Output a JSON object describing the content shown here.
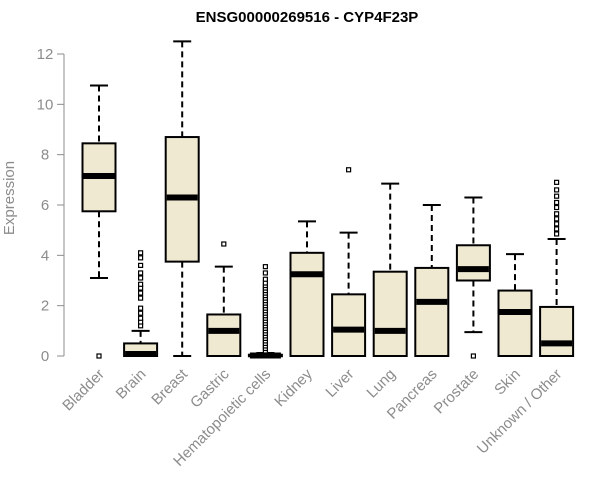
{
  "chart_data": {
    "type": "box",
    "title": "ENSG00000269516 - CYP4F23P",
    "xlabel": "",
    "ylabel": "Expression",
    "ylim": [
      0,
      12.5
    ],
    "yticks": [
      0,
      2,
      4,
      6,
      8,
      10,
      12
    ],
    "grid": false,
    "box_fill": "#efe9d2",
    "box_stroke": "#000000",
    "axis_color": "#8c8c8c",
    "categories": [
      "Bladder",
      "Brain",
      "Breast",
      "Gastric",
      "Hematopoietic cells",
      "Kidney",
      "Liver",
      "Lung",
      "Pancreas",
      "Prostate",
      "Skin",
      "Unknown / Other"
    ],
    "boxes": [
      {
        "category": "Bladder",
        "whisker_low": 3.1,
        "q1": 5.75,
        "median": 7.15,
        "q3": 8.45,
        "whisker_high": 10.75,
        "outliers": [
          0.0
        ]
      },
      {
        "category": "Brain",
        "whisker_low": 0.0,
        "q1": 0.0,
        "median": 0.08,
        "q3": 0.5,
        "whisker_high": 1.0,
        "outliers": [
          1.2,
          1.35,
          1.5,
          1.7,
          1.9,
          2.3,
          2.5,
          2.7,
          2.85,
          3.1,
          3.3,
          3.6,
          3.9,
          4.1
        ]
      },
      {
        "category": "Breast",
        "whisker_low": 0.0,
        "q1": 3.75,
        "median": 6.3,
        "q3": 8.7,
        "whisker_high": 12.5,
        "outliers": []
      },
      {
        "category": "Gastric",
        "whisker_low": 0.0,
        "q1": 0.0,
        "median": 1.0,
        "q3": 1.65,
        "whisker_high": 3.55,
        "outliers": [
          4.45
        ]
      },
      {
        "category": "Hematopoietic cells",
        "whisker_low": 0.0,
        "q1": 0.0,
        "median": 0.02,
        "q3": 0.05,
        "whisker_high": 0.12,
        "outliers": [
          0.2,
          0.3,
          0.4,
          0.5,
          0.6,
          0.7,
          0.8,
          0.9,
          1.0,
          1.1,
          1.2,
          1.3,
          1.4,
          1.5,
          1.6,
          1.7,
          1.8,
          1.9,
          2.0,
          2.1,
          2.2,
          2.3,
          2.4,
          2.5,
          2.6,
          2.7,
          2.8,
          2.9,
          3.05,
          3.3,
          3.55
        ]
      },
      {
        "category": "Kidney",
        "whisker_low": 0.0,
        "q1": 0.0,
        "median": 3.25,
        "q3": 4.1,
        "whisker_high": 5.35,
        "outliers": []
      },
      {
        "category": "Liver",
        "whisker_low": 0.0,
        "q1": 0.0,
        "median": 1.05,
        "q3": 2.45,
        "whisker_high": 4.9,
        "outliers": [
          7.4
        ]
      },
      {
        "category": "Lung",
        "whisker_low": 0.0,
        "q1": 0.0,
        "median": 1.0,
        "q3": 3.35,
        "whisker_high": 6.85,
        "outliers": []
      },
      {
        "category": "Pancreas",
        "whisker_low": 0.0,
        "q1": 0.0,
        "median": 2.15,
        "q3": 3.5,
        "whisker_high": 6.0,
        "outliers": []
      },
      {
        "category": "Prostate",
        "whisker_low": 0.95,
        "q1": 3.0,
        "median": 3.45,
        "q3": 4.4,
        "whisker_high": 6.3,
        "outliers": [
          0.0
        ]
      },
      {
        "category": "Skin",
        "whisker_low": 0.0,
        "q1": 0.0,
        "median": 1.75,
        "q3": 2.6,
        "whisker_high": 4.05,
        "outliers": []
      },
      {
        "category": "Unknown / Other",
        "whisker_low": 0.0,
        "q1": 0.0,
        "median": 0.5,
        "q3": 1.95,
        "whisker_high": 4.65,
        "outliers": [
          4.85,
          5.05,
          5.25,
          5.45,
          5.65,
          5.9,
          6.1,
          6.35,
          6.6,
          6.9
        ]
      }
    ]
  }
}
